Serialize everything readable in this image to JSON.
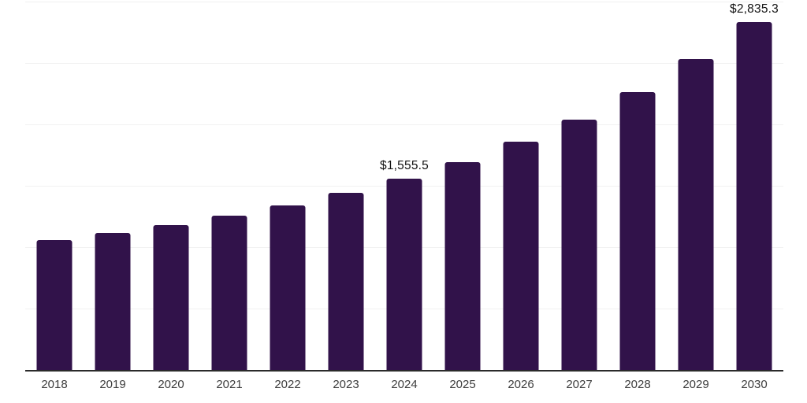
{
  "chart_data": {
    "type": "bar",
    "title": "",
    "xlabel": "",
    "ylabel": "",
    "categories": [
      "2018",
      "2019",
      "2020",
      "2021",
      "2022",
      "2023",
      "2024",
      "2025",
      "2026",
      "2027",
      "2028",
      "2029",
      "2030"
    ],
    "values": [
      1060,
      1115,
      1180,
      1255,
      1340,
      1445,
      1555.5,
      1690,
      1860,
      2040,
      2265,
      2530,
      2835.3
    ],
    "data_labels": [
      {
        "index": 6,
        "text": "$1,555.5"
      },
      {
        "index": 12,
        "text": "$2,835.3"
      }
    ],
    "ylim": [
      0,
      3000
    ],
    "gridline_step": 500,
    "grid": true,
    "y_tick_labels_visible": false,
    "legend": "none"
  },
  "colors": {
    "bar": "#31124a",
    "gridline": "#f1f1f1",
    "axis": "#2b2b2b",
    "tick_label": "#3d3d3d",
    "data_label": "#111111",
    "background": "#ffffff"
  }
}
